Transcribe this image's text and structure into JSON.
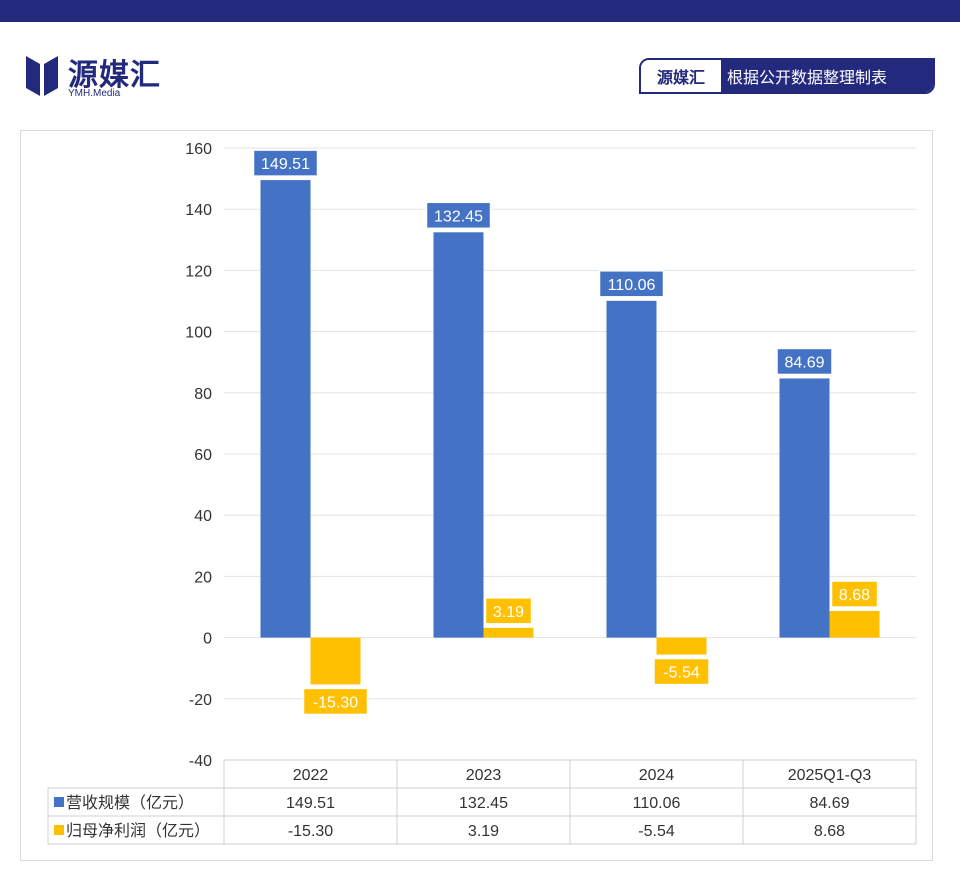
{
  "header": {
    "logo_cn": "源媒汇",
    "logo_en": "YMH.Media",
    "badge_brand": "源媒汇",
    "badge_desc": "根据公开数据整理制表"
  },
  "colors": {
    "navy": "#232a7e",
    "series1": "#4472c4",
    "series2": "#ffc000"
  },
  "chart_data": {
    "type": "bar",
    "categories": [
      "2022",
      "2023",
      "2024",
      "2025Q1-Q3"
    ],
    "series": [
      {
        "name": "营收规模（亿元）",
        "color": "#4472c4",
        "values": [
          149.51,
          132.45,
          110.06,
          84.69
        ],
        "labels": [
          "149.51",
          "132.45",
          "110.06",
          "84.69"
        ]
      },
      {
        "name": "归母净利润（亿元）",
        "color": "#ffc000",
        "values": [
          -15.3,
          3.19,
          -5.54,
          8.68
        ],
        "labels": [
          "-15.30",
          "3.19",
          "-5.54",
          "8.68"
        ]
      }
    ],
    "ylim": [
      -40,
      160
    ],
    "yticks": [
      160,
      140,
      120,
      100,
      80,
      60,
      40,
      20,
      0,
      -20,
      -40
    ],
    "grid": true,
    "data_table": true
  }
}
